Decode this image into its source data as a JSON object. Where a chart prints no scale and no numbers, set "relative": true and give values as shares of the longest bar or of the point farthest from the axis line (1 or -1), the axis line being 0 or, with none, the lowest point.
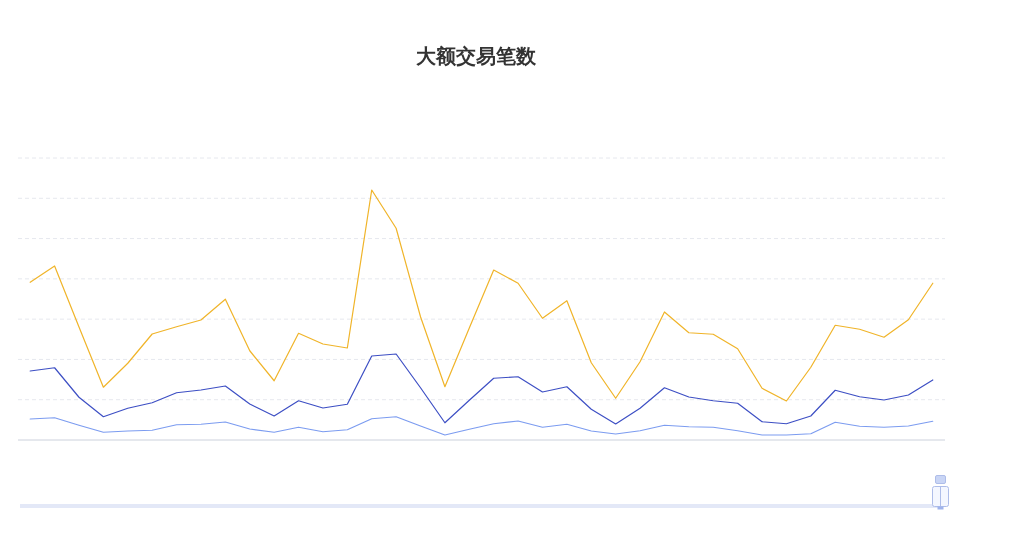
{
  "chart_data": {
    "type": "line",
    "title": "大额交易笔数",
    "relative": true,
    "categories": [
      null,
      null,
      null,
      null,
      null,
      null,
      null,
      null,
      null,
      null,
      null,
      null,
      null,
      null,
      null,
      null,
      null,
      null,
      null,
      null,
      null,
      null,
      null,
      null,
      null,
      null,
      null,
      null,
      null,
      null,
      null,
      null,
      null,
      null,
      null,
      null,
      null,
      null
    ],
    "series": [
      {
        "color": "#f0b429",
        "values": [
          0.631,
          0.696,
          0.452,
          0.211,
          0.307,
          0.424,
          0.453,
          0.48,
          0.563,
          0.357,
          0.237,
          0.427,
          0.384,
          0.368,
          1.0,
          0.847,
          0.493,
          0.213,
          0.448,
          0.68,
          0.627,
          0.487,
          0.557,
          0.309,
          0.167,
          0.313,
          0.512,
          0.429,
          0.423,
          0.365,
          0.207,
          0.156,
          0.291,
          0.459,
          0.443,
          0.411,
          0.481,
          0.627
        ]
      },
      {
        "color": "#3d4fc4",
        "values": [
          0.276,
          0.289,
          0.171,
          0.093,
          0.127,
          0.149,
          0.189,
          0.2,
          0.216,
          0.144,
          0.096,
          0.157,
          0.128,
          0.143,
          0.336,
          0.344,
          0.209,
          0.069,
          0.159,
          0.247,
          0.253,
          0.192,
          0.213,
          0.123,
          0.064,
          0.127,
          0.209,
          0.172,
          0.157,
          0.147,
          0.073,
          0.065,
          0.096,
          0.199,
          0.173,
          0.16,
          0.18,
          0.24
        ]
      },
      {
        "color": "#7c9cf0",
        "values": [
          0.084,
          0.089,
          0.059,
          0.031,
          0.036,
          0.039,
          0.061,
          0.063,
          0.072,
          0.044,
          0.031,
          0.051,
          0.033,
          0.041,
          0.085,
          0.093,
          0.056,
          0.02,
          0.043,
          0.065,
          0.076,
          0.051,
          0.063,
          0.036,
          0.024,
          0.037,
          0.059,
          0.053,
          0.051,
          0.037,
          0.02,
          0.02,
          0.025,
          0.071,
          0.055,
          0.051,
          0.056,
          0.075
        ]
      }
    ],
    "grid": true
  }
}
